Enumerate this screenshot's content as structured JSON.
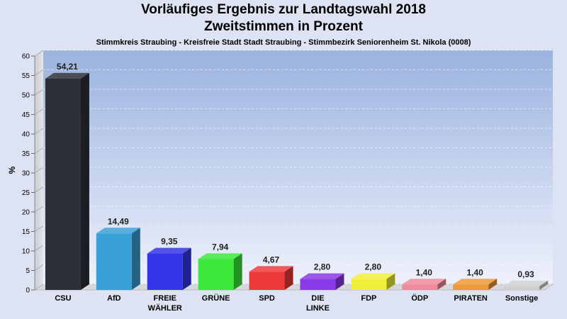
{
  "title_line1": "Vorläufiges Ergebnis zur Landtagswahl 2018",
  "title_line2": "Zweitstimmen in Prozent",
  "subtitle": "Stimmkreis Straubing - Kreisfreie Stadt Stadt Straubing - Stimmbezirk Seniorenheim St. Nikola (0008)",
  "chart_data": {
    "type": "bar",
    "title": "Vorläufiges Ergebnis zur Landtagswahl 2018 – Zweitstimmen in Prozent",
    "ylabel": "%",
    "xlabel": "",
    "ylim": [
      0,
      60
    ],
    "yticks": [
      0,
      5,
      10,
      15,
      20,
      25,
      30,
      35,
      40,
      45,
      50,
      55,
      60
    ],
    "grid": true,
    "categories": [
      "CSU",
      "AfD",
      "FREIE\nWÄHLER",
      "GRÜNE",
      "SPD",
      "DIE\nLINKE",
      "FDP",
      "ÖDP",
      "PIRATEN",
      "Sonstige"
    ],
    "values": [
      54.21,
      14.49,
      9.35,
      7.94,
      4.67,
      2.8,
      2.8,
      1.4,
      1.4,
      0.93
    ],
    "value_labels": [
      "54,21",
      "14,49",
      "9,35",
      "7,94",
      "4,67",
      "2,80",
      "2,80",
      "1,40",
      "1,40",
      "0,93"
    ],
    "colors": [
      "#2c2f38",
      "#3aa0d8",
      "#3535e8",
      "#3de83d",
      "#ee3a3a",
      "#8a3ae8",
      "#f0f03a",
      "#ee8a9a",
      "#ee9a3a",
      "#d0d0d0"
    ]
  }
}
